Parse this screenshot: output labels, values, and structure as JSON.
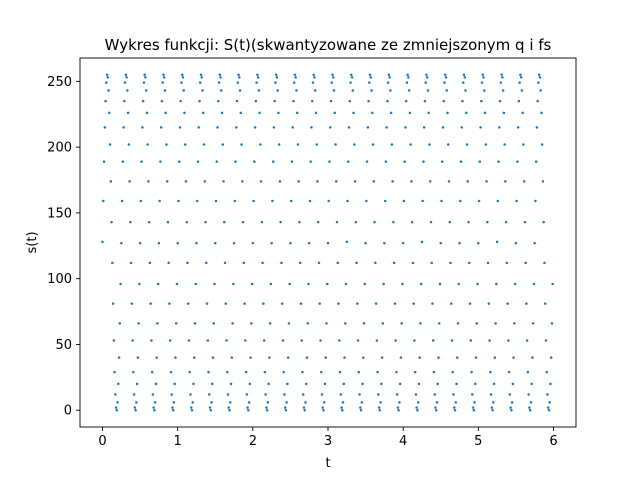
{
  "chart_data": {
    "type": "scatter",
    "title": "Wykres funkcji: S(t)(skwantyzowane ze zmniejszonym q i fs",
    "xlabel": "t",
    "ylabel": "s(t)",
    "xlim": [
      -0.3,
      6.3
    ],
    "ylim": [
      -12.75,
      267.75
    ],
    "xticks": [
      0,
      1,
      2,
      3,
      4,
      5,
      6
    ],
    "yticks": [
      0,
      50,
      100,
      150,
      200,
      250
    ],
    "grid": false,
    "legend": "none",
    "marker_color": "#1f77b4",
    "sampling_step": 0.01,
    "signal": {
      "form": "round(127.5 + 127.5 * sin(2*pi*f*t))",
      "frequency": 4,
      "amplitude": 127.5,
      "offset": 127.5,
      "t_start": 0.0,
      "t_end": 5.99
    }
  }
}
